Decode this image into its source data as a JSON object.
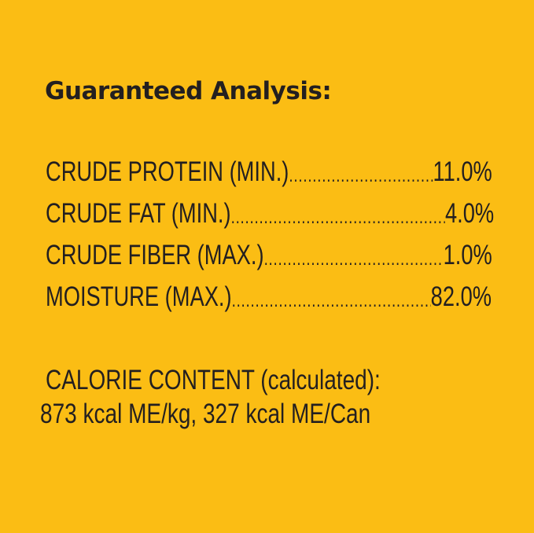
{
  "title": "Guaranteed Analysis:",
  "analysis": [
    {
      "label": "CRUDE PROTEIN (MIN.)",
      "value": "11.0%"
    },
    {
      "label": "CRUDE FAT (MIN.)",
      "value": "4.0%"
    },
    {
      "label": "CRUDE FIBER (MAX.)",
      "value": "1.0%"
    },
    {
      "label": "MOISTURE (MAX.)",
      "value": "82.0%"
    }
  ],
  "calorie": {
    "heading": "CALORIE CONTENT (calculated):",
    "values": "873 kcal ME/kg, 327 kcal ME/Can"
  },
  "colors": {
    "background": "#fbbd14",
    "text": "#231f20"
  }
}
